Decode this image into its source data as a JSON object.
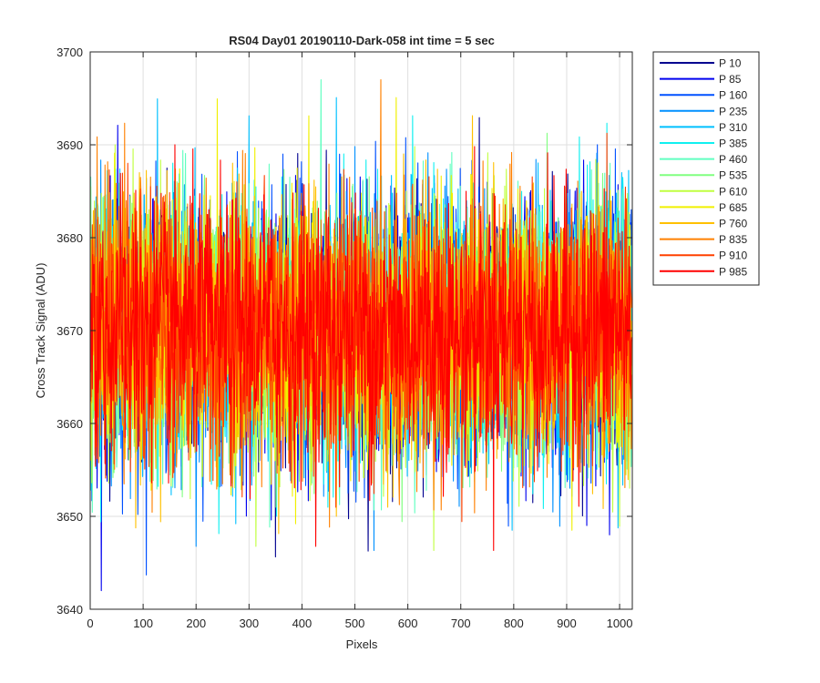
{
  "chart_data": {
    "type": "line",
    "title": "RS04 Day01 20190110-Dark-058 int time = 5 sec",
    "xlabel": "Pixels",
    "ylabel": "Cross Track Signal (ADU)",
    "xlim": [
      0,
      1024
    ],
    "ylim": [
      3640,
      3700
    ],
    "xticks": [
      "0",
      "100",
      "200",
      "300",
      "400",
      "500",
      "600",
      "700",
      "800",
      "900",
      "1000"
    ],
    "yticks": [
      "3640",
      "3650",
      "3660",
      "3670",
      "3680",
      "3690",
      "3700"
    ],
    "grid": true,
    "legend_position": "outside-top-right",
    "noise_model": {
      "mean": 3670,
      "std": 7,
      "min_observed": 3642,
      "max_observed": 3697,
      "points_per_series": 1024
    },
    "series": [
      {
        "name": "P 10",
        "color": "#00008F",
        "mean": 3670,
        "std": 7
      },
      {
        "name": "P 85",
        "color": "#0000EF",
        "mean": 3670,
        "std": 7
      },
      {
        "name": "P 160",
        "color": "#0050FF",
        "mean": 3670,
        "std": 7
      },
      {
        "name": "P 235",
        "color": "#0090FF",
        "mean": 3670,
        "std": 7
      },
      {
        "name": "P 310",
        "color": "#00C0FF",
        "mean": 3670,
        "std": 7
      },
      {
        "name": "P 385",
        "color": "#10F0F0",
        "mean": 3670,
        "std": 7
      },
      {
        "name": "P 460",
        "color": "#60FFC0",
        "mean": 3670,
        "std": 7
      },
      {
        "name": "P 535",
        "color": "#80FF80",
        "mean": 3670,
        "std": 7
      },
      {
        "name": "P 610",
        "color": "#C0FF40",
        "mean": 3670,
        "std": 7
      },
      {
        "name": "P 685",
        "color": "#F0F000",
        "mean": 3670,
        "std": 7
      },
      {
        "name": "P 760",
        "color": "#FFC000",
        "mean": 3670,
        "std": 7
      },
      {
        "name": "P 835",
        "color": "#FF8000",
        "mean": 3670,
        "std": 7
      },
      {
        "name": "P 910",
        "color": "#FF4000",
        "mean": 3670,
        "std": 7
      },
      {
        "name": "P 985",
        "color": "#FF0000",
        "mean": 3670,
        "std": 7
      }
    ]
  }
}
